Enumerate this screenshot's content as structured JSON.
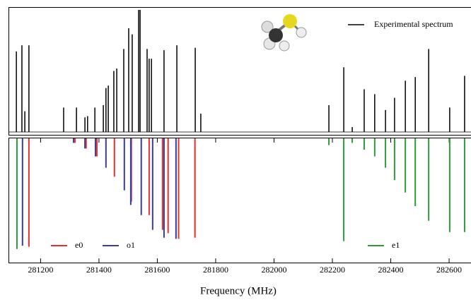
{
  "chart_data": {
    "type": "stick",
    "x_label": "Frequency (MHz)",
    "xlim": [
      281090,
      282675
    ],
    "xticks": [
      281200,
      281400,
      281600,
      281800,
      282000,
      282200,
      282400,
      282600
    ],
    "ylim": [
      0,
      1
    ],
    "experimental": {
      "name": "Experimental spectrum",
      "color": "#000000",
      "x": [
        281117,
        281136,
        281146,
        281160,
        281279,
        281323,
        281352,
        281361,
        281386,
        281415,
        281424,
        281432,
        281451,
        281461,
        281485,
        281502,
        281514,
        281536,
        281541,
        281565,
        281572,
        281580,
        281623,
        281667,
        281730,
        281749,
        282188,
        282239,
        282268,
        282309,
        282345,
        282382,
        282413,
        282450,
        282484,
        282530,
        282602,
        282653
      ],
      "values": [
        0.66,
        0.71,
        0.17,
        0.71,
        0.2,
        0.2,
        0.12,
        0.13,
        0.2,
        0.22,
        0.36,
        0.38,
        0.5,
        0.52,
        0.68,
        0.85,
        0.8,
        1.0,
        1.0,
        0.68,
        0.6,
        0.6,
        0.67,
        0.71,
        0.69,
        0.15,
        0.22,
        0.53,
        0.04,
        0.35,
        0.31,
        0.18,
        0.28,
        0.42,
        0.45,
        0.68,
        0.2,
        0.46
      ]
    },
    "series": [
      {
        "name": "e0",
        "color": "#e8312f",
        "x": [
          281160,
          281318,
          281356,
          281393,
          281453,
          281511,
          281572,
          281618,
          281637,
          281673,
          281729
        ],
        "values": [
          0.96,
          0.04,
          0.09,
          0.16,
          0.34,
          0.56,
          0.68,
          0.81,
          0.84,
          0.89,
          0.88
        ]
      },
      {
        "name": "o1",
        "color": "#3b3b9c",
        "x": [
          281138,
          281313,
          281352,
          281388,
          281424,
          281487,
          281509,
          281545,
          281584,
          281623,
          281664
        ],
        "values": [
          0.95,
          0.04,
          0.09,
          0.16,
          0.26,
          0.46,
          0.59,
          0.68,
          0.81,
          0.88,
          0.89
        ]
      },
      {
        "name": "e1",
        "color": "#2e9a3a",
        "x": [
          281119,
          282188,
          282239,
          282268,
          282309,
          282345,
          282382,
          282413,
          282450,
          282484,
          282530,
          282602,
          282653
        ],
        "values": [
          0.98,
          0.06,
          0.91,
          0.04,
          0.1,
          0.16,
          0.26,
          0.37,
          0.48,
          0.6,
          0.73,
          0.83,
          0.83
        ]
      }
    ]
  }
}
